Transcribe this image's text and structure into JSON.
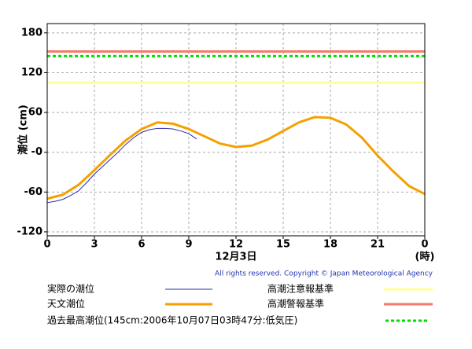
{
  "chart_data": {
    "type": "line",
    "y_label": "潮位 (cm)",
    "x_label": "12月3日",
    "x_unit": "(時)",
    "copyright": "All rights reserved. Copyright © Japan Meteorological Agency",
    "xlim": [
      0,
      24
    ],
    "xticks": [
      0,
      3,
      6,
      9,
      12,
      15,
      18,
      21,
      {
        "value": 24,
        "label": "0"
      }
    ],
    "ylim": [
      -126,
      194
    ],
    "yticks": [
      180,
      120,
      60,
      {
        "value": 0,
        "label": "-0"
      },
      -60,
      -120
    ],
    "grid": true,
    "series": [
      {
        "name": "実際の潮位",
        "color": "#2a2aa8",
        "width": 1,
        "x": [
          0,
          0.5,
          1,
          1.5,
          2,
          2.5,
          3,
          3.5,
          4,
          4.5,
          5,
          5.5,
          6,
          6.5,
          7,
          7.5,
          8,
          8.5,
          9,
          9.5
        ],
        "values": [
          -76,
          -74,
          -71,
          -65,
          -58,
          -46,
          -33,
          -22,
          -11,
          0,
          12,
          22,
          30,
          34,
          36,
          36,
          35,
          32,
          28,
          20
        ]
      },
      {
        "name": "天文潮位",
        "color": "#f5a000",
        "width": 3,
        "x": [
          0,
          1,
          2,
          3,
          4,
          5,
          6,
          7,
          8,
          9,
          10,
          11,
          12,
          13,
          14,
          15,
          16,
          17,
          18,
          19,
          20,
          21,
          22,
          23,
          24
        ],
        "values": [
          -70,
          -64,
          -49,
          -27,
          -4,
          18,
          35,
          45,
          43,
          35,
          24,
          13,
          8,
          10,
          19,
          32,
          45,
          53,
          52,
          42,
          22,
          -5,
          -29,
          -51,
          -63
        ]
      }
    ],
    "reference_lines": [
      {
        "name": "高潮注意報基準",
        "color": "#ffff99",
        "value": 105,
        "dashed": false
      },
      {
        "name": "高潮警報基準",
        "color": "#f47a6a",
        "value": 152,
        "dashed": false
      },
      {
        "name": "過去最高潮位(145cm:2006年10月07日03時47分:低気圧)",
        "color": "#00dd00",
        "value": 145,
        "dashed": true
      }
    ]
  }
}
